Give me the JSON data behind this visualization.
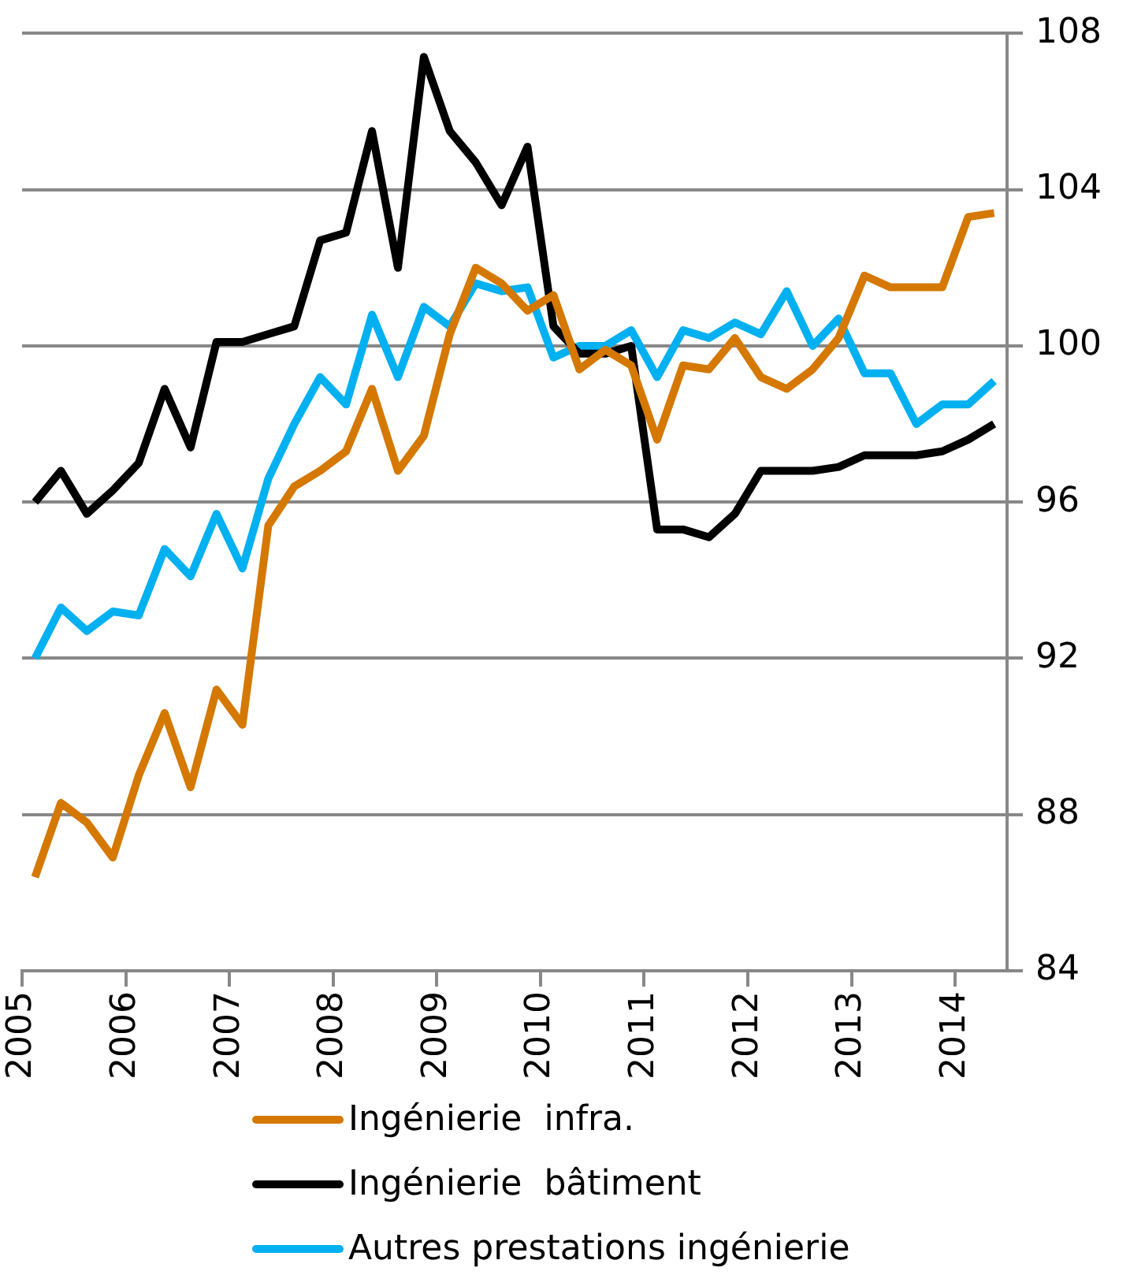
{
  "chart_data": {
    "type": "line",
    "x": [
      2005.125,
      2005.375,
      2005.625,
      2005.875,
      2006.125,
      2006.375,
      2006.625,
      2006.875,
      2007.125,
      2007.375,
      2007.625,
      2007.875,
      2008.125,
      2008.375,
      2008.625,
      2008.875,
      2009.125,
      2009.375,
      2009.625,
      2009.875,
      2010.125,
      2010.375,
      2010.625,
      2010.875,
      2011.125,
      2011.375,
      2011.625,
      2011.875,
      2012.125,
      2012.375,
      2012.625,
      2012.875,
      2013.125,
      2013.375,
      2013.625,
      2013.875,
      2014.125,
      2014.375
    ],
    "series": [
      {
        "name": "Ingénierie  infra.",
        "color": "#d47800",
        "values": [
          86.4,
          88.3,
          87.8,
          86.9,
          89.0,
          90.6,
          88.7,
          91.2,
          90.3,
          95.4,
          96.4,
          96.8,
          97.3,
          98.9,
          96.8,
          97.7,
          100.3,
          102.0,
          101.6,
          100.9,
          101.3,
          99.4,
          99.9,
          99.5,
          97.6,
          99.5,
          99.4,
          100.2,
          99.2,
          98.9,
          99.4,
          100.2,
          101.8,
          101.5,
          101.5,
          101.5,
          103.3,
          103.4
        ]
      },
      {
        "name": "Ingénierie  bâtiment",
        "color": "#000000",
        "values": [
          96.0,
          96.8,
          95.7,
          96.3,
          97.0,
          98.9,
          97.4,
          100.1,
          100.1,
          100.3,
          100.5,
          102.7,
          102.9,
          105.5,
          102.0,
          107.4,
          105.5,
          104.7,
          103.6,
          105.1,
          100.5,
          99.8,
          99.8,
          100.0,
          95.3,
          95.3,
          95.1,
          95.7,
          96.8,
          96.8,
          96.8,
          96.9,
          97.2,
          97.2,
          97.2,
          97.3,
          97.6,
          98.0
        ]
      },
      {
        "name": "Autres prestations ingénierie",
        "color": "#00b0f0",
        "values": [
          92.0,
          93.3,
          92.7,
          93.2,
          93.1,
          94.8,
          94.1,
          95.7,
          94.3,
          96.6,
          98.0,
          99.2,
          98.5,
          100.8,
          99.2,
          101.0,
          100.5,
          101.6,
          101.4,
          101.5,
          99.7,
          100.0,
          100.0,
          100.4,
          99.2,
          100.4,
          100.2,
          100.6,
          100.3,
          101.4,
          100.0,
          100.7,
          99.3,
          99.3,
          98.0,
          98.5,
          98.5,
          99.1
        ]
      }
    ],
    "xlim": [
      2005,
      2014.5
    ],
    "xticks": [
      2005,
      2006,
      2007,
      2008,
      2009,
      2010,
      2011,
      2012,
      2013,
      2014
    ],
    "ylim": [
      84,
      108
    ],
    "yticks": [
      84,
      88,
      92,
      96,
      100,
      104,
      108
    ],
    "grid": "y",
    "legend": "bottom",
    "marker": "none",
    "line_style": "solid"
  }
}
